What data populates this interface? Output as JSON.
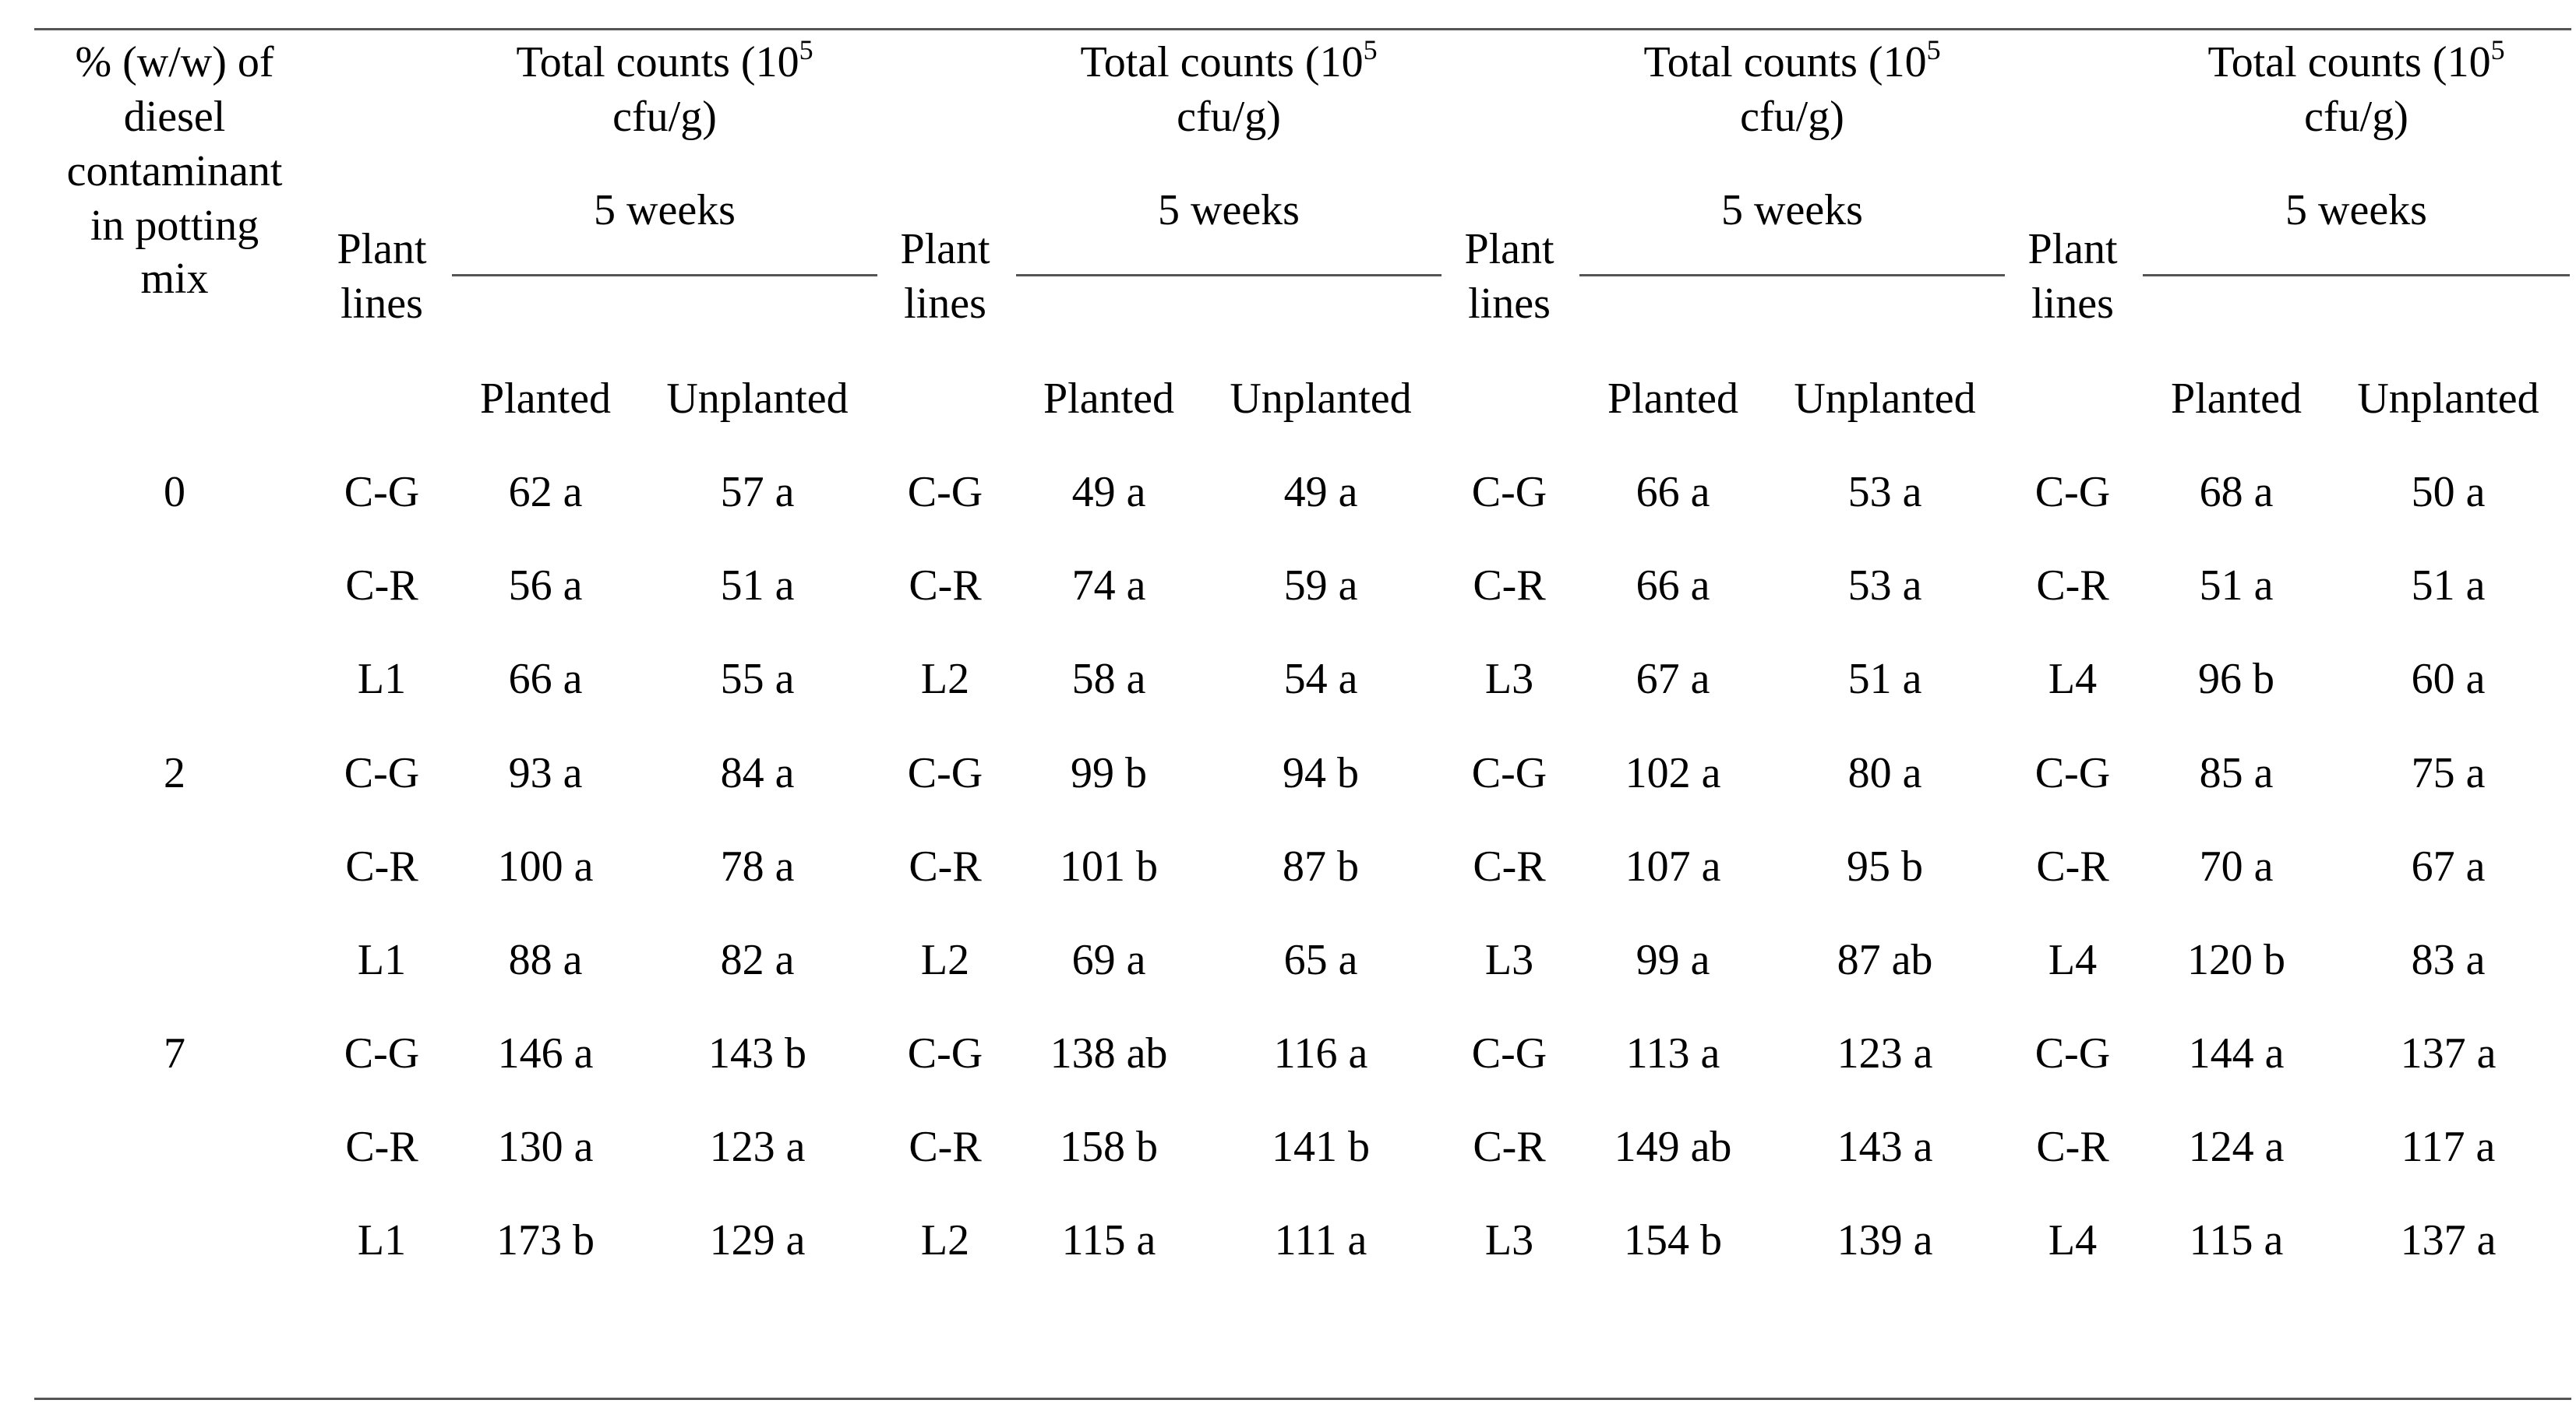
{
  "header": {
    "contaminant_label_lines": [
      "% (w/w) of",
      "diesel",
      "contaminant",
      "in potting",
      "mix"
    ],
    "plant_lines_label_lines": [
      "Plant",
      "lines"
    ],
    "total_counts_prefix": "Total counts (10",
    "total_counts_exp": "5",
    "total_counts_unit": "cfu/g)",
    "duration": "5 weeks",
    "planted": "Planted",
    "unplanted": "Unplanted"
  },
  "groups": [
    {
      "concentration": "0",
      "rows": [
        {
          "lines": [
            "C-G",
            "C-G",
            "C-G",
            "C-G"
          ],
          "values": [
            [
              "62 a",
              "57 a"
            ],
            [
              "49 a",
              "49 a"
            ],
            [
              "66 a",
              "53 a"
            ],
            [
              "68 a",
              "50 a"
            ]
          ]
        },
        {
          "lines": [
            "C-R",
            "C-R",
            "C-R",
            "C-R"
          ],
          "values": [
            [
              "56 a",
              "51 a"
            ],
            [
              "74 a",
              "59 a"
            ],
            [
              "66 a",
              "53 a"
            ],
            [
              "51 a",
              "51 a"
            ]
          ]
        },
        {
          "lines": [
            "L1",
            "L2",
            "L3",
            "L4"
          ],
          "values": [
            [
              "66 a",
              "55 a"
            ],
            [
              "58 a",
              "54 a"
            ],
            [
              "67 a",
              "51 a"
            ],
            [
              "96 b",
              "60 a"
            ]
          ]
        }
      ]
    },
    {
      "concentration": "2",
      "rows": [
        {
          "lines": [
            "C-G",
            "C-G",
            "C-G",
            "C-G"
          ],
          "values": [
            [
              "93 a",
              "84 a"
            ],
            [
              "99 b",
              "94 b"
            ],
            [
              "102 a",
              "80 a"
            ],
            [
              "85 a",
              "75 a"
            ]
          ]
        },
        {
          "lines": [
            "C-R",
            "C-R",
            "C-R",
            "C-R"
          ],
          "values": [
            [
              "100 a",
              "78 a"
            ],
            [
              "101 b",
              "87 b"
            ],
            [
              "107 a",
              "95 b"
            ],
            [
              "70 a",
              "67 a"
            ]
          ]
        },
        {
          "lines": [
            "L1",
            "L2",
            "L3",
            "L4"
          ],
          "values": [
            [
              "88 a",
              "82 a"
            ],
            [
              "69 a",
              "65 a"
            ],
            [
              "99 a",
              "87 ab"
            ],
            [
              "120 b",
              "83 a"
            ]
          ]
        }
      ]
    },
    {
      "concentration": "7",
      "rows": [
        {
          "lines": [
            "C-G",
            "C-G",
            "C-G",
            "C-G"
          ],
          "values": [
            [
              "146 a",
              "143 b"
            ],
            [
              "138 ab",
              "116 a"
            ],
            [
              "113 a",
              "123 a"
            ],
            [
              "144 a",
              "137 a"
            ]
          ]
        },
        {
          "lines": [
            "C-R",
            "C-R",
            "C-R",
            "C-R"
          ],
          "values": [
            [
              "130 a",
              "123 a"
            ],
            [
              "158 b",
              "141 b"
            ],
            [
              "149 ab",
              "143 a"
            ],
            [
              "124 a",
              "117 a"
            ]
          ]
        },
        {
          "lines": [
            "L1",
            "L2",
            "L3",
            "L4"
          ],
          "values": [
            [
              "173 b",
              "129 a"
            ],
            [
              "115 a",
              "111 a"
            ],
            [
              "154 b",
              "139 a"
            ],
            [
              "115 a",
              "137 a"
            ]
          ]
        }
      ]
    }
  ]
}
